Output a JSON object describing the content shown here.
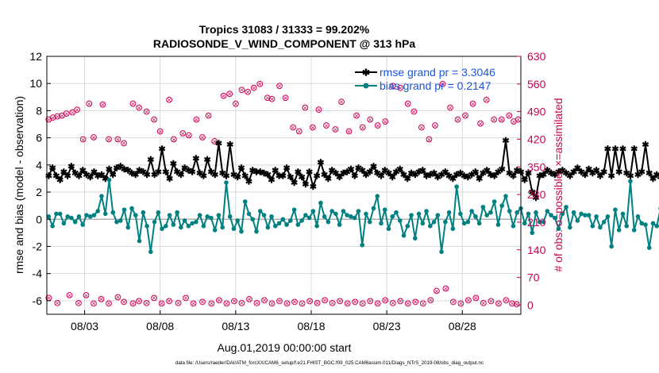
{
  "chart_data": {
    "type": "line",
    "title": "Tropics 31083 / 31333 = 99.202%",
    "subtitle": "RADIOSONDE_V_WIND_COMPONENT @ 313 hPa",
    "xlabel": "Aug.01,2019 00:00:00 start",
    "ylabel": "rmse and bias (model - observation)",
    "ylabel_right": "# of obs: o=possible; ×=assimilated",
    "footer": "data file: /Users/raeder/DAI/ATM_forcXX/CAM6_setup/f.e21.FHIST_BGC.f09_025.CAM6assim.011/Diags_NTrS_2019-08/obs_diag_output.nc",
    "xlim": [
      0.5,
      31.875
    ],
    "ylim": [
      -7,
      12
    ],
    "ylim_right": [
      -23.33,
      630
    ],
    "x_ticks": [
      3,
      8,
      13,
      18,
      23,
      28
    ],
    "x_tick_labels": [
      "08/03",
      "08/08",
      "08/13",
      "08/18",
      "08/23",
      "08/28"
    ],
    "y_ticks": [
      -6,
      -4,
      -2,
      0,
      2,
      4,
      6,
      8,
      10,
      12
    ],
    "y_tick_labels": [
      "-6",
      "-4",
      "-2",
      "0",
      "2",
      "4",
      "6",
      "8",
      "10",
      "12"
    ],
    "y2_ticks": [
      0,
      70,
      140,
      210,
      280,
      350,
      420,
      490,
      560,
      630
    ],
    "y2_tick_labels": [
      "0",
      "70",
      "140",
      "210",
      "280",
      "350",
      "420",
      "490",
      "560",
      "630"
    ],
    "grid": true,
    "legend_position": "top-right",
    "x_start": 0.625,
    "x_step": 0.25,
    "series": [
      {
        "name": "rmse grand pr = 3.3046",
        "color": "#000000",
        "marker": "star",
        "values": [
          3.2,
          3.8,
          3.2,
          2.9,
          3.5,
          3.2,
          3.9,
          3.4,
          3.2,
          3.6,
          3.3,
          3.1,
          3.5,
          3.2,
          3.3,
          3.0,
          3.7,
          3.3,
          3.8,
          3.9,
          3.7,
          3.6,
          3.4,
          3.3,
          3.6,
          3.5,
          3.3,
          4.4,
          3.3,
          3.5,
          5.2,
          3.5,
          3.0,
          4.1,
          3.5,
          3.3,
          3.8,
          3.6,
          3.5,
          4.5,
          3.4,
          3.2,
          4.4,
          3.5,
          3.3,
          5.6,
          3.4,
          3.2,
          5.5,
          3.3,
          3.1,
          3.8,
          3.2,
          2.8,
          3.6,
          3.5,
          3.5,
          3.4,
          3.3,
          2.9,
          3.6,
          3.2,
          3.2,
          3.8,
          3.1,
          2.7,
          3.5,
          3.1,
          2.6,
          3.5,
          2.4,
          3.2,
          4.2,
          3.3,
          3.0,
          3.6,
          3.4,
          3.1,
          3.4,
          3.5,
          3.7,
          3.2,
          3.8,
          3.6,
          3.3,
          3.5,
          3.9,
          3.4,
          3.2,
          3.6,
          3.4,
          3.1,
          3.5,
          3.7,
          3.3,
          3.0,
          3.4,
          3.3,
          3.5,
          3.6,
          3.2,
          3.3,
          3.4,
          3.1,
          3.3,
          3.5,
          3.2,
          3.0,
          3.3,
          3.4,
          3.2,
          3.1,
          3.3,
          3.5,
          3.0,
          3.4,
          3.6,
          3.3,
          3.2,
          3.5,
          3.7,
          5.8,
          3.4,
          3.2,
          3.6,
          3.5,
          2.9,
          3.4,
          2.0,
          1.6,
          3.2,
          3.3,
          3.6,
          3.4,
          3.3,
          3.5,
          3.6,
          3.4,
          3.2,
          3.5,
          3.8,
          3.5,
          3.3,
          3.7,
          3.4,
          3.6,
          3.2,
          3.5,
          5.2,
          3.2,
          5.2,
          3.5,
          5.2,
          3.4,
          3.2,
          5.2,
          3.3,
          3.5,
          5.5,
          3.4,
          3.0,
          3.3,
          3.1,
          2.8,
          1.9,
          1.9
        ]
      },
      {
        "name": "bias grand pr = 0.2147",
        "color": "#008080",
        "marker": "circle",
        "values": [
          0.2,
          -0.5,
          0.4,
          0.4,
          -0.3,
          0.2,
          0.1,
          -0.2,
          0.2,
          -0.4,
          0.3,
          0.2,
          0.3,
          0.6,
          1.7,
          0.4,
          2.9,
          0.5,
          -0.2,
          -0.1,
          0.7,
          -0.6,
          0.8,
          0.3,
          -1.6,
          0.5,
          -0.5,
          -2.4,
          -0.2,
          0.5,
          -0.7,
          -0.5,
          0.3,
          -0.4,
          0.5,
          -0.6,
          -0.1,
          -0.5,
          -0.3,
          -0.2,
          0.3,
          -0.5,
          0.2,
          0.1,
          -0.8,
          0.3,
          -0.6,
          2.7,
          0.2,
          -0.7,
          -0.1,
          -0.9,
          1.3,
          0.4,
          0.0,
          -0.9,
          0.6,
          0.3,
          -0.6,
          0.2,
          -0.5,
          -0.3,
          0.0,
          -0.4,
          -0.1,
          0.7,
          -0.4,
          -0.1,
          0.3,
          0.1,
          0.6,
          -0.5,
          1.2,
          0.2,
          -0.2,
          0.6,
          0.4,
          -0.4,
          0.6,
          0.3,
          0.2,
          0.1,
          0.6,
          -1.9,
          0.4,
          -0.2,
          0.8,
          1.7,
          -0.3,
          0.7,
          -0.7,
          0.2,
          0.5,
          -0.1,
          -1.2,
          -0.5,
          0.3,
          -1.4,
          0.4,
          -0.3,
          0.6,
          -0.5,
          -0.2,
          0.3,
          -2.4,
          -0.2,
          0.5,
          -0.7,
          2.4,
          0.4,
          -0.3,
          -0.2,
          0.6,
          0.2,
          -0.3,
          0.9,
          0.3,
          0.5,
          1.3,
          -0.4,
          1.0,
          1.7,
          0.6,
          -0.5,
          0.5,
          0.8,
          -0.3,
          0.4,
          -1.0,
          0.5,
          -0.2,
          -0.2,
          0.6,
          0.3,
          0.1,
          -0.7,
          0.4,
          0.9,
          -0.6,
          0.5,
          -0.1,
          0.4,
          0.3,
          0.3,
          -0.5,
          0.2,
          -0.6,
          -0.2,
          0.2,
          -2.0,
          0.7,
          -0.8,
          0.4,
          -0.5,
          2.8,
          -0.8,
          0.2,
          -0.3,
          -0.4,
          -2.1,
          -0.3,
          -0.5,
          0.8,
          -0.4,
          -1.2
        ]
      }
    ],
    "obs_possible": [
      {
        "x": 0.625,
        "y": 470
      },
      {
        "x": 0.9,
        "y": 475
      },
      {
        "x": 1.2,
        "y": 478
      },
      {
        "x": 1.5,
        "y": 480
      },
      {
        "x": 1.8,
        "y": 485
      },
      {
        "x": 2.2,
        "y": 488
      },
      {
        "x": 2.5,
        "y": 495
      },
      {
        "x": 2.9,
        "y": 420
      },
      {
        "x": 3.3,
        "y": 510
      },
      {
        "x": 3.6,
        "y": 425
      },
      {
        "x": 4.2,
        "y": 508
      },
      {
        "x": 4.6,
        "y": 420
      },
      {
        "x": 5.2,
        "y": 420
      },
      {
        "x": 5.6,
        "y": 410
      },
      {
        "x": 6.2,
        "y": 510
      },
      {
        "x": 6.6,
        "y": 500
      },
      {
        "x": 7.1,
        "y": 490
      },
      {
        "x": 7.6,
        "y": 470
      },
      {
        "x": 8.0,
        "y": 440
      },
      {
        "x": 8.6,
        "y": 520
      },
      {
        "x": 8.9,
        "y": 420
      },
      {
        "x": 9.5,
        "y": 435
      },
      {
        "x": 9.9,
        "y": 430
      },
      {
        "x": 10.4,
        "y": 470
      },
      {
        "x": 10.8,
        "y": 425
      },
      {
        "x": 11.2,
        "y": 480
      },
      {
        "x": 11.6,
        "y": 415
      },
      {
        "x": 12.2,
        "y": 530
      },
      {
        "x": 12.6,
        "y": 535
      },
      {
        "x": 13.0,
        "y": 510
      },
      {
        "x": 13.4,
        "y": 545
      },
      {
        "x": 13.8,
        "y": 540
      },
      {
        "x": 14.2,
        "y": 550
      },
      {
        "x": 14.6,
        "y": 560
      },
      {
        "x": 15.1,
        "y": 525
      },
      {
        "x": 15.4,
        "y": 522
      },
      {
        "x": 15.9,
        "y": 555
      },
      {
        "x": 16.3,
        "y": 525
      },
      {
        "x": 16.8,
        "y": 450
      },
      {
        "x": 17.2,
        "y": 440
      },
      {
        "x": 17.6,
        "y": 500
      },
      {
        "x": 18.1,
        "y": 450
      },
      {
        "x": 18.5,
        "y": 495
      },
      {
        "x": 19.0,
        "y": 455
      },
      {
        "x": 19.6,
        "y": 445
      },
      {
        "x": 20.0,
        "y": 515
      },
      {
        "x": 20.5,
        "y": 440
      },
      {
        "x": 21.0,
        "y": 480
      },
      {
        "x": 21.4,
        "y": 450
      },
      {
        "x": 21.9,
        "y": 470
      },
      {
        "x": 22.4,
        "y": 455
      },
      {
        "x": 22.9,
        "y": 465
      },
      {
        "x": 23.4,
        "y": 555
      },
      {
        "x": 23.9,
        "y": 550
      },
      {
        "x": 24.4,
        "y": 510
      },
      {
        "x": 24.8,
        "y": 490
      },
      {
        "x": 25.3,
        "y": 450
      },
      {
        "x": 25.8,
        "y": 420
      },
      {
        "x": 26.2,
        "y": 455
      },
      {
        "x": 26.7,
        "y": 560
      },
      {
        "x": 27.2,
        "y": 500
      },
      {
        "x": 27.7,
        "y": 470
      },
      {
        "x": 28.2,
        "y": 480
      },
      {
        "x": 28.7,
        "y": 510
      },
      {
        "x": 29.2,
        "y": 460
      },
      {
        "x": 29.6,
        "y": 520
      },
      {
        "x": 30.1,
        "y": 470
      },
      {
        "x": 30.6,
        "y": 470
      },
      {
        "x": 31.1,
        "y": 480
      },
      {
        "x": 31.4,
        "y": 465
      },
      {
        "x": 31.7,
        "y": 470
      },
      {
        "x": 0.625,
        "y": 18
      },
      {
        "x": 1.2,
        "y": 5
      },
      {
        "x": 2.0,
        "y": 25
      },
      {
        "x": 2.6,
        "y": 5
      },
      {
        "x": 3.1,
        "y": 25
      },
      {
        "x": 3.6,
        "y": 4
      },
      {
        "x": 4.1,
        "y": 15
      },
      {
        "x": 4.6,
        "y": 4
      },
      {
        "x": 5.2,
        "y": 20
      },
      {
        "x": 5.6,
        "y": 8
      },
      {
        "x": 6.2,
        "y": 4
      },
      {
        "x": 6.6,
        "y": 10
      },
      {
        "x": 7.1,
        "y": 5
      },
      {
        "x": 7.6,
        "y": 18
      },
      {
        "x": 8.1,
        "y": 4
      },
      {
        "x": 8.6,
        "y": 10
      },
      {
        "x": 9.2,
        "y": 5
      },
      {
        "x": 9.7,
        "y": 18
      },
      {
        "x": 10.2,
        "y": 4
      },
      {
        "x": 10.8,
        "y": 8
      },
      {
        "x": 11.4,
        "y": 4
      },
      {
        "x": 11.9,
        "y": 12
      },
      {
        "x": 12.4,
        "y": 4
      },
      {
        "x": 12.9,
        "y": 10
      },
      {
        "x": 13.4,
        "y": 5
      },
      {
        "x": 13.9,
        "y": 15
      },
      {
        "x": 14.4,
        "y": 5
      },
      {
        "x": 14.9,
        "y": 12
      },
      {
        "x": 15.4,
        "y": 4
      },
      {
        "x": 15.9,
        "y": 10
      },
      {
        "x": 16.4,
        "y": 4
      },
      {
        "x": 16.9,
        "y": 8
      },
      {
        "x": 17.4,
        "y": 4
      },
      {
        "x": 17.9,
        "y": 10
      },
      {
        "x": 18.4,
        "y": 5
      },
      {
        "x": 18.9,
        "y": 12
      },
      {
        "x": 19.4,
        "y": 5
      },
      {
        "x": 19.9,
        "y": 10
      },
      {
        "x": 20.4,
        "y": 4
      },
      {
        "x": 20.9,
        "y": 8
      },
      {
        "x": 21.4,
        "y": 4
      },
      {
        "x": 21.9,
        "y": 10
      },
      {
        "x": 22.4,
        "y": 4
      },
      {
        "x": 22.9,
        "y": 12
      },
      {
        "x": 23.4,
        "y": 5
      },
      {
        "x": 23.9,
        "y": 10
      },
      {
        "x": 24.4,
        "y": 4
      },
      {
        "x": 24.9,
        "y": 8
      },
      {
        "x": 25.4,
        "y": 4
      },
      {
        "x": 25.9,
        "y": 12
      },
      {
        "x": 26.3,
        "y": 36
      },
      {
        "x": 26.9,
        "y": 42
      },
      {
        "x": 27.4,
        "y": 8
      },
      {
        "x": 27.9,
        "y": 4
      },
      {
        "x": 28.4,
        "y": 12
      },
      {
        "x": 28.9,
        "y": 18
      },
      {
        "x": 29.4,
        "y": 5
      },
      {
        "x": 29.9,
        "y": 10
      },
      {
        "x": 30.4,
        "y": 4
      },
      {
        "x": 30.9,
        "y": 12
      },
      {
        "x": 31.3,
        "y": 4
      },
      {
        "x": 31.6,
        "y": 2
      }
    ]
  }
}
